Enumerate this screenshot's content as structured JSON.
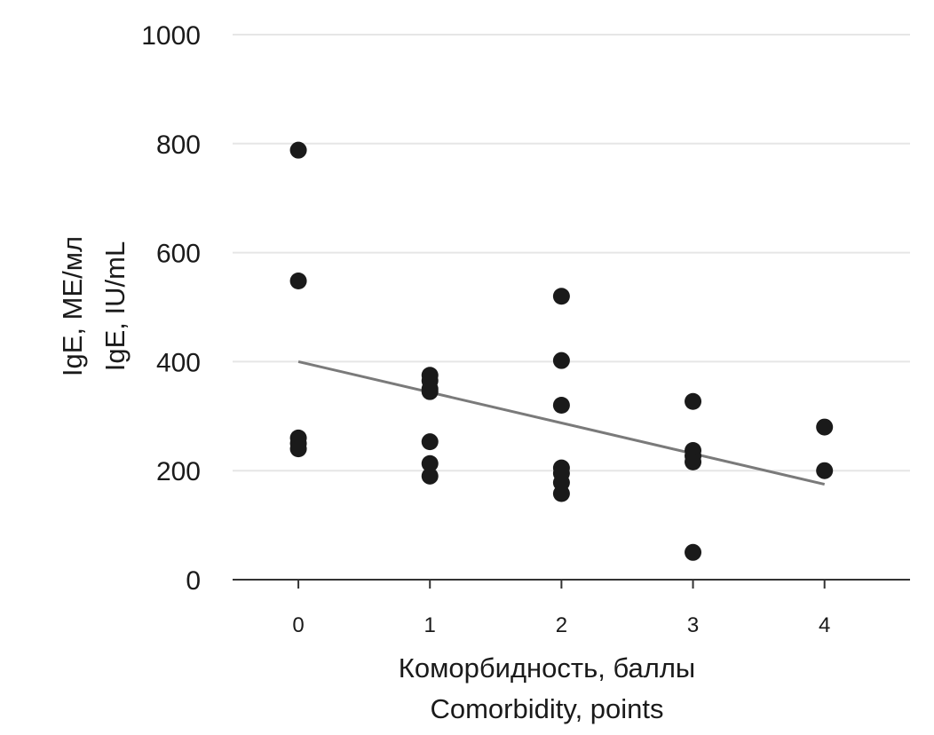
{
  "chart_data": {
    "type": "scatter",
    "xlabel_lines": [
      "Коморбидность, баллы",
      "Comorbidity, points"
    ],
    "ylabel_lines": [
      "IgE, МЕ/мл",
      "IgE, IU/mL"
    ],
    "xlim": [
      -0.5,
      4.65
    ],
    "ylim": [
      0,
      1000
    ],
    "x_ticks": [
      0,
      1,
      2,
      3,
      4
    ],
    "y_ticks": [
      0,
      200,
      400,
      600,
      800,
      1000
    ],
    "grid": "horizontal",
    "colors": {
      "points": "#1a1a1a",
      "trendline": "#7a7a7a",
      "grid": "#e6e6e6",
      "axis": "#333333"
    },
    "points": [
      {
        "x": 0,
        "y": 788
      },
      {
        "x": 0,
        "y": 548
      },
      {
        "x": 0,
        "y": 260
      },
      {
        "x": 0,
        "y": 250
      },
      {
        "x": 0,
        "y": 240
      },
      {
        "x": 1,
        "y": 375
      },
      {
        "x": 1,
        "y": 365
      },
      {
        "x": 1,
        "y": 350
      },
      {
        "x": 1,
        "y": 345
      },
      {
        "x": 1,
        "y": 253
      },
      {
        "x": 1,
        "y": 213
      },
      {
        "x": 1,
        "y": 190
      },
      {
        "x": 2,
        "y": 520
      },
      {
        "x": 2,
        "y": 402
      },
      {
        "x": 2,
        "y": 320
      },
      {
        "x": 2,
        "y": 205
      },
      {
        "x": 2,
        "y": 195
      },
      {
        "x": 2,
        "y": 178
      },
      {
        "x": 2,
        "y": 158
      },
      {
        "x": 3,
        "y": 327
      },
      {
        "x": 3,
        "y": 237
      },
      {
        "x": 3,
        "y": 227
      },
      {
        "x": 3,
        "y": 216
      },
      {
        "x": 3,
        "y": 50
      },
      {
        "x": 4,
        "y": 280
      },
      {
        "x": 4,
        "y": 200
      }
    ],
    "trendline": {
      "x": [
        0,
        4
      ],
      "y": [
        400,
        175
      ]
    }
  }
}
